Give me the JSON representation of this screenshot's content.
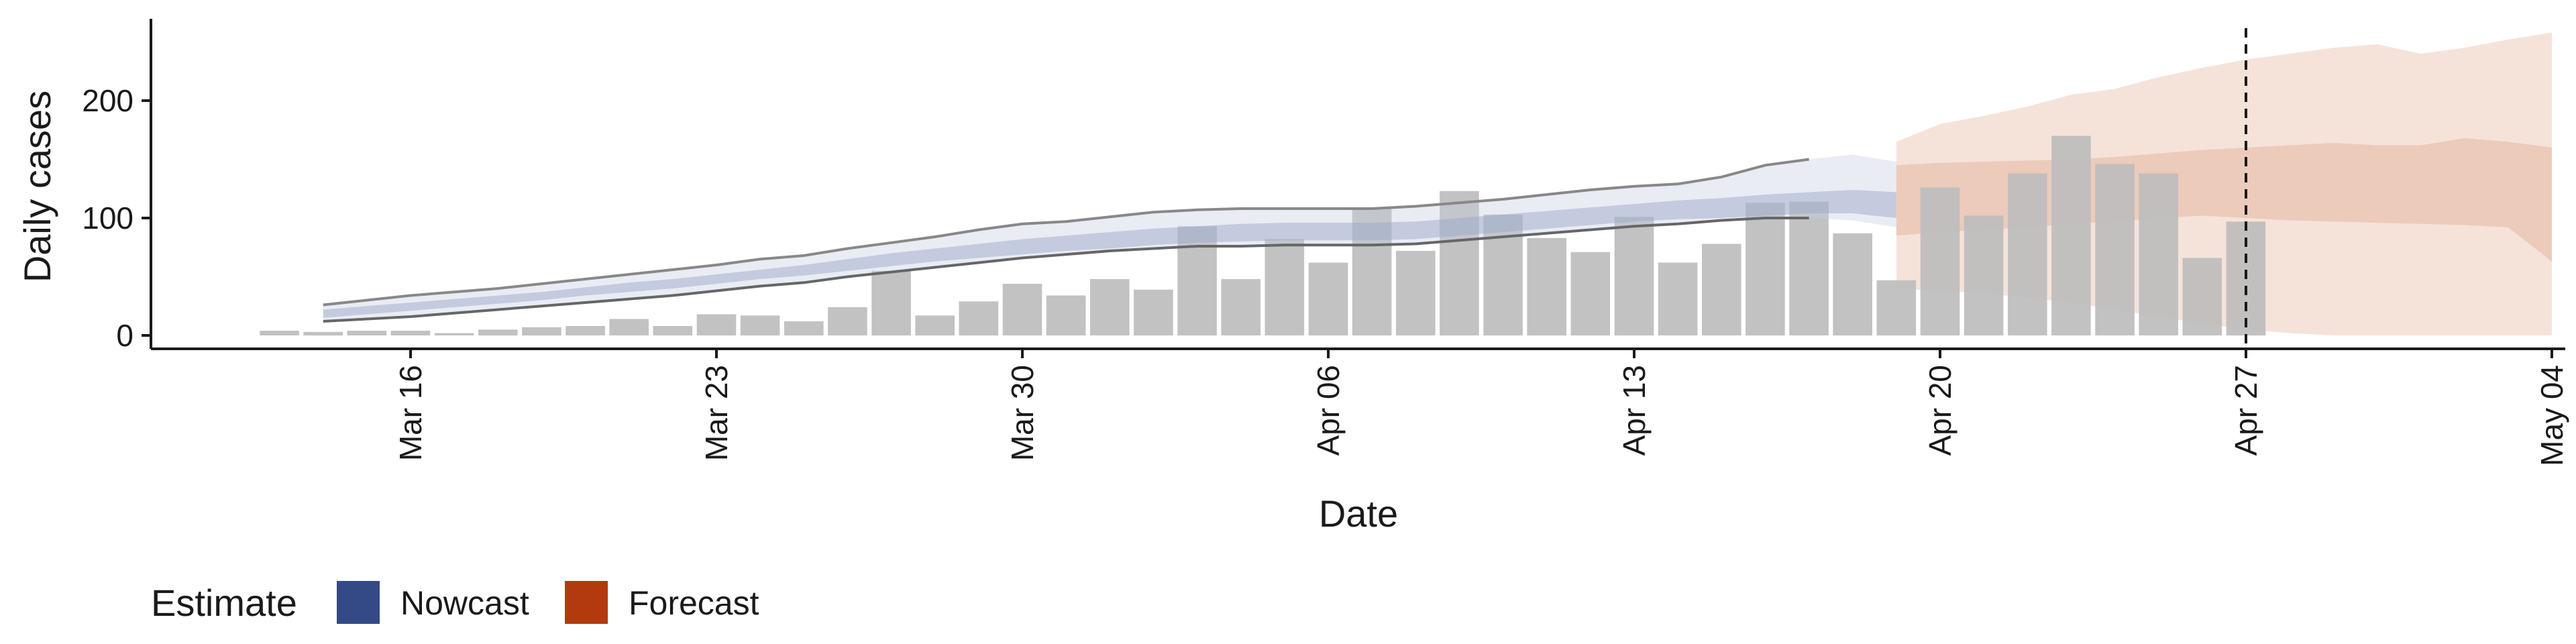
{
  "chart_data": {
    "type": "bar",
    "xlabel": "Date",
    "ylabel": "Daily cases",
    "x_ticks": [
      "Mar 16",
      "Mar 23",
      "Mar 30",
      "Apr 06",
      "Apr 13",
      "Apr 20",
      "Apr 27",
      "May 04"
    ],
    "y_ticks": [
      0,
      100,
      200
    ],
    "ylim": [
      -12,
      270
    ],
    "x_range": [
      "2020-03-09",
      "2020-05-04"
    ],
    "grid": false,
    "reference_line": {
      "date": "2020-04-27",
      "style": "dashed"
    },
    "bars": {
      "start_date": "2020-03-13",
      "values": [
        4,
        3,
        4,
        4,
        2,
        5,
        7,
        8,
        14,
        8,
        18,
        17,
        12,
        24,
        55,
        17,
        29,
        44,
        34,
        48,
        39,
        93,
        48,
        82,
        62,
        108,
        72,
        123,
        103,
        83,
        71,
        101,
        62,
        78,
        113,
        114,
        87,
        47,
        126,
        102,
        138,
        170,
        146,
        138,
        66,
        97
      ],
      "color": "#bdbdbd"
    },
    "nowcast": {
      "start_date": "2020-03-14",
      "median": [
        18,
        21,
        24,
        27,
        30,
        33,
        37,
        41,
        44,
        48,
        52,
        55,
        60,
        64,
        68,
        72,
        75,
        78,
        80,
        83,
        85,
        87,
        88,
        88,
        88,
        89,
        92,
        95,
        98,
        101,
        104,
        106,
        108,
        110,
        112,
        113,
        110
      ],
      "lower_50": [
        15,
        18,
        21,
        24,
        27,
        30,
        34,
        37,
        40,
        44,
        48,
        51,
        55,
        59,
        63,
        66,
        69,
        72,
        74,
        77,
        79,
        80,
        81,
        81,
        81,
        82,
        85,
        88,
        91,
        94,
        97,
        99,
        100,
        102,
        104,
        104,
        100
      ],
      "upper_50": [
        22,
        25,
        28,
        31,
        34,
        37,
        41,
        45,
        48,
        52,
        56,
        60,
        65,
        70,
        74,
        78,
        82,
        85,
        88,
        91,
        93,
        95,
        96,
        96,
        96,
        97,
        100,
        103,
        106,
        109,
        112,
        115,
        117,
        120,
        122,
        124,
        122
      ],
      "lower_90": [
        12,
        14,
        16,
        19,
        22,
        25,
        28,
        31,
        34,
        38,
        42,
        45,
        50,
        54,
        58,
        62,
        66,
        69,
        72,
        74,
        76,
        76,
        77,
        77,
        77,
        78,
        81,
        84,
        87,
        90,
        93,
        95,
        98,
        100,
        100,
        98,
        92
      ],
      "upper_90": [
        26,
        30,
        34,
        37,
        40,
        44,
        48,
        52,
        56,
        60,
        65,
        68,
        74,
        79,
        84,
        90,
        95,
        97,
        101,
        105,
        107,
        108,
        108,
        108,
        108,
        110,
        113,
        116,
        120,
        124,
        127,
        129,
        135,
        145,
        150,
        154,
        148
      ],
      "color": "#3b4f8a"
    },
    "forecast": {
      "start_date": "2020-04-19",
      "median": [
        115,
        116,
        117,
        118,
        119,
        120,
        121,
        122,
        123,
        124,
        125,
        124,
        125,
        126,
        125,
        124
      ],
      "lower_50": [
        85,
        88,
        90,
        92,
        95,
        97,
        100,
        102,
        100,
        98,
        97,
        96,
        95,
        94,
        92,
        63
      ],
      "upper_50": [
        145,
        147,
        148,
        149,
        150,
        152,
        155,
        158,
        160,
        162,
        164,
        162,
        162,
        168,
        165,
        160
      ],
      "lower_90": [
        40,
        38,
        36,
        32,
        28,
        22,
        16,
        10,
        5,
        2,
        0,
        0,
        0,
        0,
        0,
        0
      ],
      "upper_90": [
        165,
        180,
        187,
        195,
        205,
        210,
        220,
        228,
        235,
        240,
        245,
        248,
        240,
        245,
        252,
        258
      ],
      "color": "#b5451b"
    },
    "legend": {
      "title": "Estimate",
      "position": "bottom-left",
      "items": [
        {
          "label": "Nowcast",
          "color": "#344a87"
        },
        {
          "label": "Forecast",
          "color": "#b23a0e"
        }
      ]
    }
  }
}
